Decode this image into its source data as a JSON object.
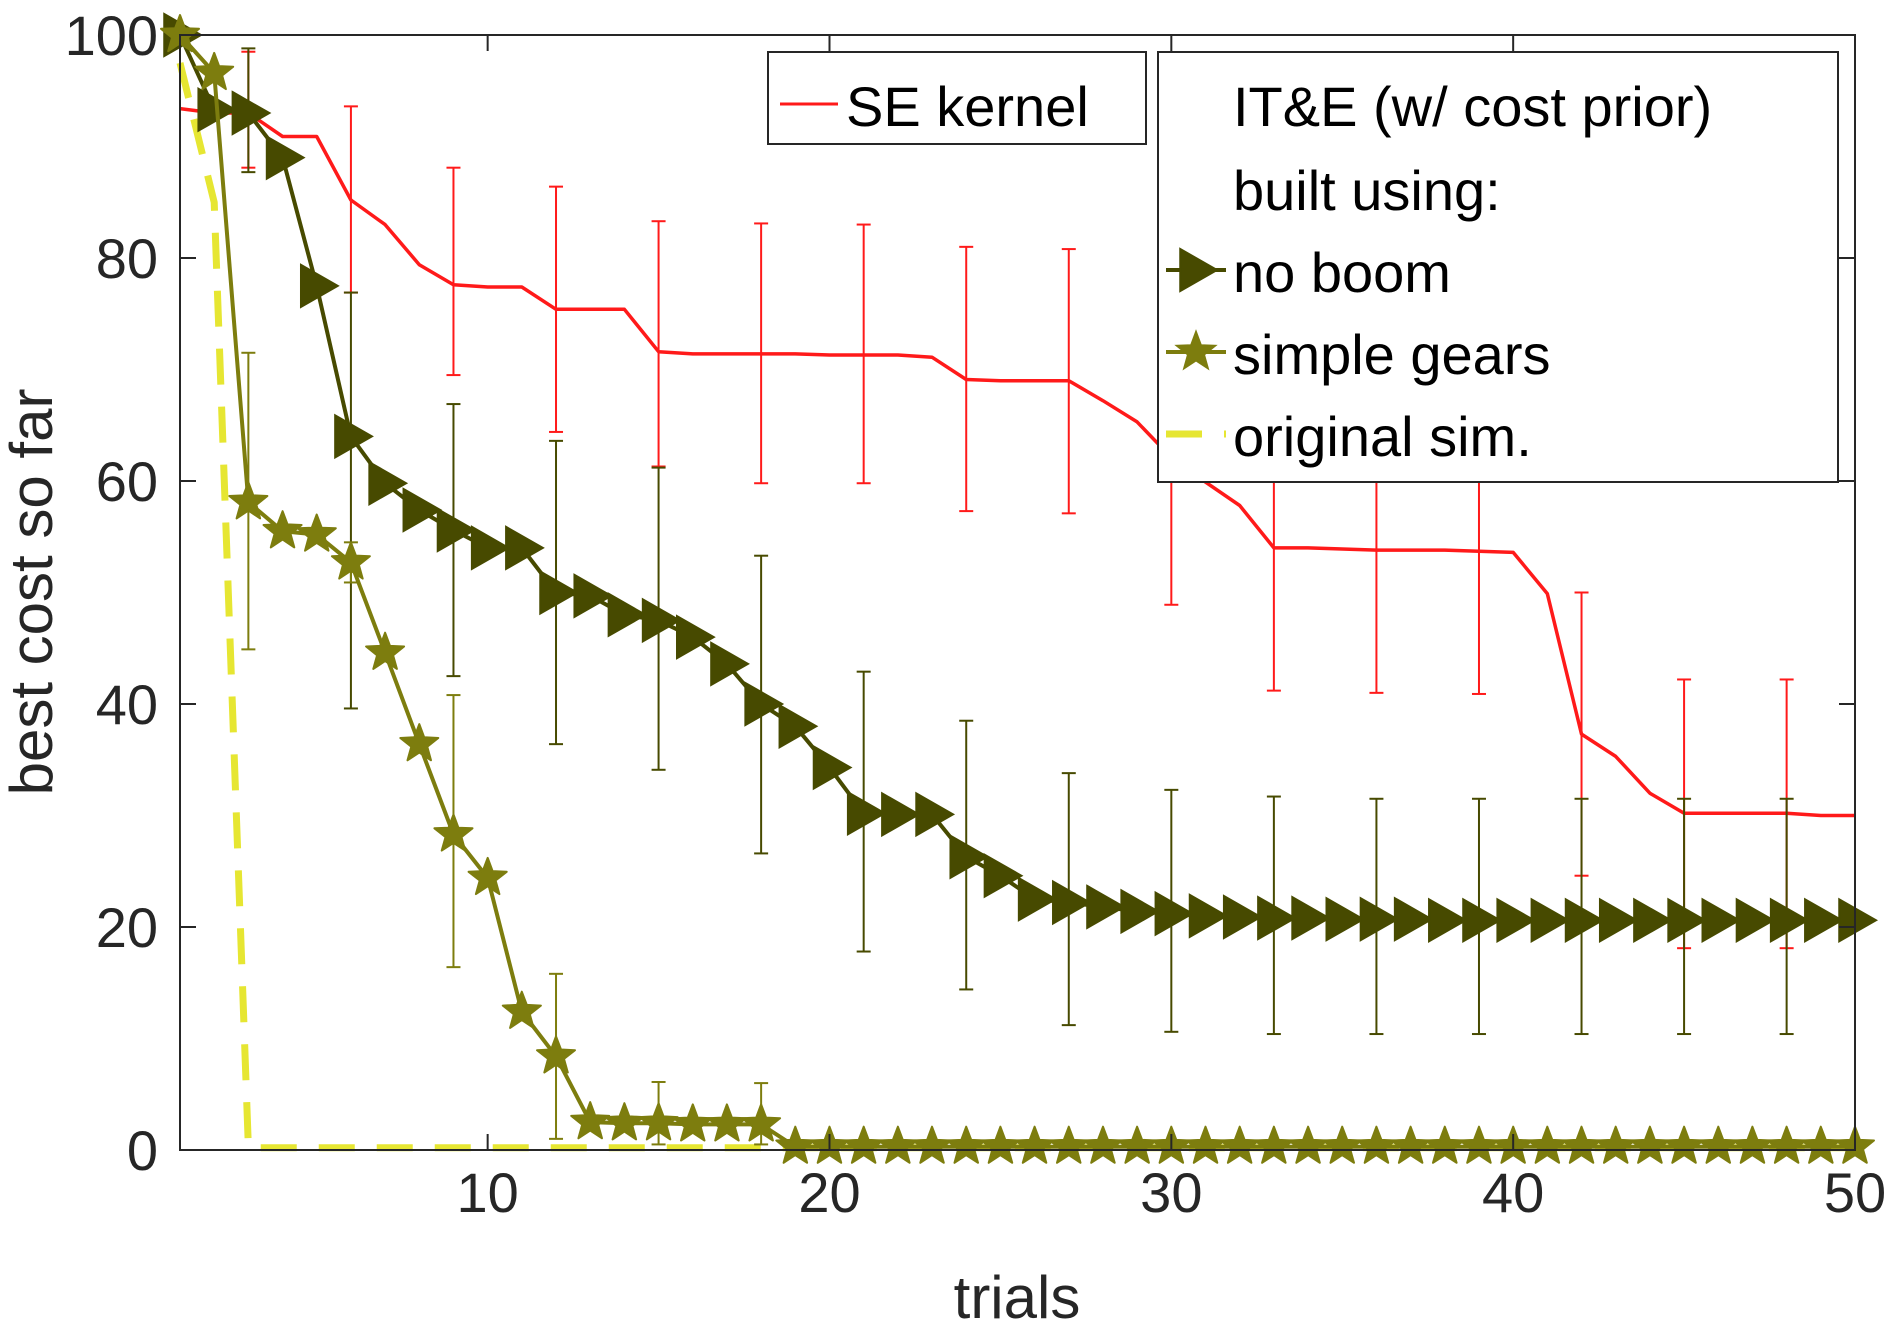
{
  "chart_data": {
    "type": "line",
    "title": "",
    "xlabel": "trials",
    "ylabel": "best cost so far",
    "xlim": [
      1,
      50
    ],
    "ylim": [
      0,
      100
    ],
    "xticks": [
      10,
      20,
      30,
      40,
      50
    ],
    "yticks": [
      0,
      20,
      40,
      60,
      80,
      100
    ],
    "grid": false,
    "x": [
      1,
      2,
      3,
      4,
      5,
      6,
      7,
      8,
      9,
      10,
      11,
      12,
      13,
      14,
      15,
      16,
      17,
      18,
      19,
      20,
      21,
      22,
      23,
      24,
      25,
      26,
      27,
      28,
      29,
      30,
      31,
      32,
      33,
      34,
      35,
      36,
      37,
      38,
      39,
      40,
      41,
      42,
      43,
      44,
      45,
      46,
      47,
      48,
      49,
      50
    ],
    "legend_left": {
      "placement": "top",
      "entries": [
        {
          "series": 0,
          "label": "SE kernel"
        }
      ]
    },
    "legend_right": {
      "placement": "top-right",
      "header_lines": [
        "IT&E (w/ cost prior)",
        "built using:"
      ],
      "entries": [
        {
          "series": 1,
          "label": "no boom"
        },
        {
          "series": 2,
          "label": "simple gears"
        },
        {
          "series": 3,
          "label": "original sim."
        }
      ]
    },
    "series": [
      {
        "name": "SE kernel",
        "color": "#ff1a1a",
        "marker": "none",
        "line": "solid",
        "values": [
          93.4,
          93.0,
          93.0,
          90.9,
          90.9,
          85.2,
          83.0,
          79.4,
          77.6,
          77.4,
          77.4,
          75.4,
          75.4,
          75.4,
          71.6,
          71.4,
          71.4,
          71.4,
          71.4,
          71.3,
          71.3,
          71.3,
          71.1,
          69.1,
          69.0,
          69.0,
          69.0,
          67.2,
          65.3,
          62.1,
          59.9,
          57.8,
          54.0,
          54.0,
          53.9,
          53.8,
          53.8,
          53.8,
          53.7,
          53.6,
          49.9,
          37.3,
          35.3,
          32.0,
          30.2,
          30.2,
          30.2,
          30.2,
          30.0,
          30.0
        ],
        "error_at": [
          3,
          6,
          9,
          12,
          15,
          18,
          21,
          24,
          27,
          30,
          33,
          36,
          39,
          42,
          45,
          48
        ],
        "error_lower": [
          88.1,
          76.9,
          69.5,
          64.4,
          61.3,
          59.8,
          59.8,
          57.3,
          57.1,
          48.9,
          41.2,
          41.0,
          40.9,
          24.6,
          18.1,
          18.1
        ],
        "error_upper": [
          98.5,
          93.6,
          88.1,
          86.4,
          83.3,
          83.1,
          83.0,
          81.0,
          80.8,
          75.0,
          67.0,
          66.5,
          66.0,
          50.0,
          42.2,
          42.2
        ]
      },
      {
        "name": "no boom",
        "color": "#474a00",
        "marker": "triangle-right",
        "line": "solid",
        "values": [
          100,
          93.3,
          93.0,
          89.0,
          77.5,
          64.0,
          59.8,
          57.4,
          55.6,
          54.0,
          54.0,
          50.0,
          49.7,
          48.0,
          47.5,
          46.0,
          43.6,
          40.0,
          38.0,
          34.3,
          30.2,
          30.1,
          30.1,
          26.3,
          24.6,
          22.5,
          22.2,
          21.8,
          21.4,
          21.2,
          21.0,
          20.9,
          20.8,
          20.8,
          20.7,
          20.7,
          20.7,
          20.6,
          20.6,
          20.6,
          20.6,
          20.6,
          20.6,
          20.6,
          20.6,
          20.6,
          20.6,
          20.6,
          20.6,
          20.6
        ],
        "error_at": [
          3,
          6,
          9,
          12,
          15,
          18,
          21,
          24,
          27,
          30,
          33,
          36,
          39,
          42,
          45,
          48
        ],
        "error_lower": [
          87.7,
          39.6,
          42.5,
          36.4,
          34.1,
          26.6,
          17.8,
          14.4,
          11.2,
          10.6,
          10.4,
          10.4,
          10.4,
          10.4,
          10.4,
          10.4
        ],
        "error_upper": [
          98.8,
          76.9,
          66.9,
          63.6,
          61.2,
          53.3,
          42.9,
          38.5,
          33.8,
          32.3,
          31.7,
          31.5,
          31.5,
          31.5,
          31.5,
          31.5
        ]
      },
      {
        "name": "simple gears",
        "color": "#7d7d0e",
        "marker": "star",
        "line": "solid",
        "values": [
          100,
          96.6,
          58.1,
          55.5,
          55.2,
          52.7,
          44.6,
          36.4,
          28.3,
          24.4,
          12.4,
          8.4,
          2.5,
          2.4,
          2.4,
          2.3,
          2.3,
          2.3,
          0.3,
          0.3,
          0.3,
          0.3,
          0.3,
          0.3,
          0.3,
          0.3,
          0.3,
          0.3,
          0.3,
          0.3,
          0.3,
          0.3,
          0.3,
          0.3,
          0.3,
          0.3,
          0.3,
          0.3,
          0.3,
          0.3,
          0.3,
          0.3,
          0.3,
          0.3,
          0.3,
          0.3,
          0.3,
          0.3,
          0.3,
          0.3
        ],
        "error_at": [
          3,
          6,
          9,
          12,
          15,
          18
        ],
        "error_lower": [
          44.9,
          50.9,
          16.4,
          1.0,
          0.5,
          0.5
        ],
        "error_upper": [
          71.5,
          54.5,
          40.8,
          15.8,
          6.1,
          6.0
        ]
      },
      {
        "name": "original sim.",
        "color": "#e6e632",
        "marker": "none",
        "line": "dashed",
        "values": [
          97.5,
          85.0,
          0.2,
          0.2,
          0.2,
          0.2,
          0.2,
          0.2,
          0.2,
          0.2,
          0.2,
          0.2,
          0.2,
          0.2,
          0.2,
          0.2,
          0.2,
          0.2,
          0.2,
          0.2,
          0.2,
          0.2,
          0.2,
          0.2,
          0.2,
          0.2,
          0.2,
          0.2,
          0.2,
          0.2,
          0.2,
          0.2,
          0.2,
          0.2,
          0.2,
          0.2,
          0.2,
          0.2,
          0.2,
          0.2,
          0.2,
          0.2,
          0.2,
          0.2,
          0.2,
          0.2,
          0.2,
          0.2,
          0.2,
          0.2
        ],
        "error_at": [],
        "error_lower": [],
        "error_upper": []
      }
    ]
  }
}
